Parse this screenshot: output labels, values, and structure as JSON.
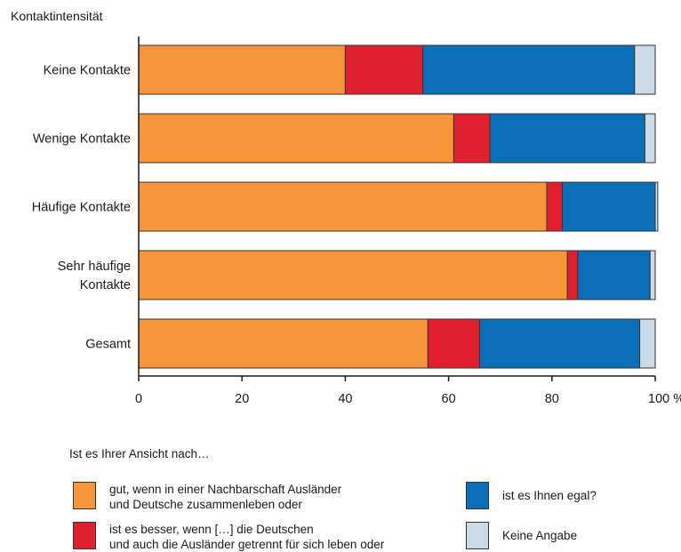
{
  "chart_data": {
    "type": "bar",
    "orientation": "horizontal",
    "stacked": true,
    "ylabel": "Kontaktintensität",
    "categories": [
      "Keine Kontakte",
      "Wenige Kontakte",
      "Häufige Kontakte",
      "Sehr häufige Kontakte",
      "Gesamt"
    ],
    "category_lines": [
      [
        "Keine Kontakte"
      ],
      [
        "Wenige Kontakte"
      ],
      [
        "Häufige Kontakte"
      ],
      [
        "Sehr häufige",
        "Kontakte"
      ],
      [
        "Gesamt"
      ]
    ],
    "series": [
      {
        "name": "gut, wenn in einer Nachbarschaft Ausländer\nund Deutsche zusammenleben oder",
        "color": "#f7953a",
        "values": [
          40,
          61,
          79,
          83,
          56
        ]
      },
      {
        "name": "ist es besser, wenn […] die Deutschen\nund auch die Ausländer getrennt für sich leben oder",
        "color": "#e0202f",
        "values": [
          15,
          7,
          3,
          2,
          10
        ]
      },
      {
        "name": "ist es Ihnen egal?",
        "color": "#0a6fb8",
        "values": [
          41,
          30,
          18,
          14,
          31
        ]
      },
      {
        "name": "Keine Angabe",
        "color": "#cddbe6",
        "values": [
          4,
          2,
          0.5,
          1,
          3
        ]
      }
    ],
    "xlim": [
      0,
      100
    ],
    "xticks": [
      "0",
      "20",
      "40",
      "60",
      "80",
      "100 %"
    ],
    "grid": false,
    "legend_title": "Ist es Ihrer Ansicht nach…",
    "legend_placement": "bottom"
  }
}
